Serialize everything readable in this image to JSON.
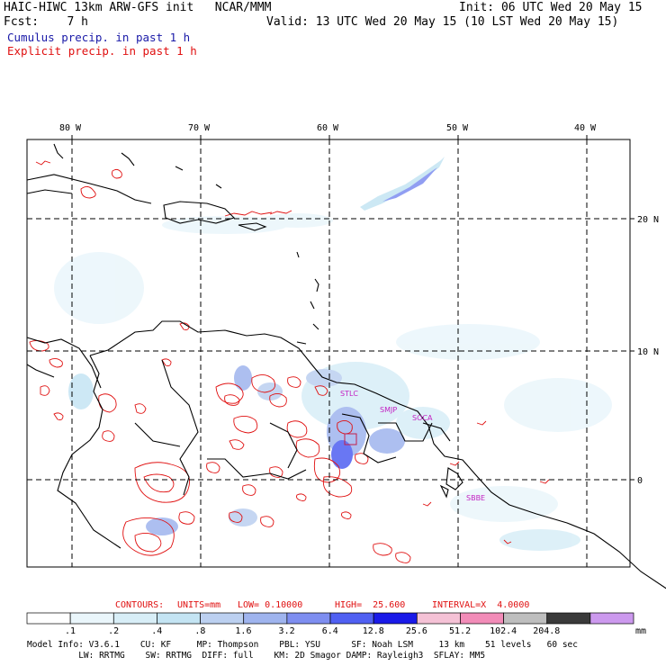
{
  "header": {
    "line1_left": "HAIC-HIWC 13km ARW-GFS init   NCAR/MMM",
    "line1_right": "Init: 06 UTC Wed 20 May 15",
    "line2_left": "Fcst:    7 h",
    "line2_right": "Valid: 13 UTC Wed 20 May 15 (10 LST Wed 20 May 15)",
    "legend_cumulus": "Cumulus precip. in past 1 h",
    "legend_explicit": "Explicit precip. in past 1 h"
  },
  "map": {
    "lon_labels": [
      "80 W",
      "70 W",
      "60 W",
      "50 W",
      "40 W"
    ],
    "lat_labels": [
      "20 N",
      "10 N",
      "0"
    ],
    "stations": [
      "STLC",
      "SMJP",
      "SOCA",
      "SBBE"
    ],
    "colors": {
      "coast": "#000000",
      "explicit": "#e01010",
      "grid": "#000000"
    }
  },
  "contours": {
    "label": "CONTOURS:",
    "units": "UNITS=mm",
    "low": "LOW= 0.10000",
    "high": "HIGH=  25.600",
    "interval": "INTERVAL=X  4.0000"
  },
  "colorbar": {
    "tick_labels": [
      ".1",
      ".2",
      ".4",
      ".8",
      "1.6",
      "3.2",
      "6.4",
      "12.8",
      "25.6",
      "51.2",
      "102.4",
      "204.8"
    ],
    "unit": "mm",
    "colors": [
      "#ffffff",
      "#eaf6fb",
      "#d8eef7",
      "#c4e4f3",
      "#bcd0f0",
      "#9fb4ee",
      "#7e8ef0",
      "#5060f2",
      "#1a1ae8",
      "#f5c2d6",
      "#f28cb8",
      "#bebebe",
      "#3a3a3a",
      "#cc99ee"
    ]
  },
  "footer": {
    "line1": "Model Info: V3.6.1    CU: KF     MP: Thompson    PBL: YSU      SF: Noah LSM     13 km    51 levels   60 sec",
    "line2": "          LW: RRTMG    SW: RRTMG  DIFF: full    KM: 2D Smagor DAMP: Rayleigh3  SFLAY: MM5"
  }
}
